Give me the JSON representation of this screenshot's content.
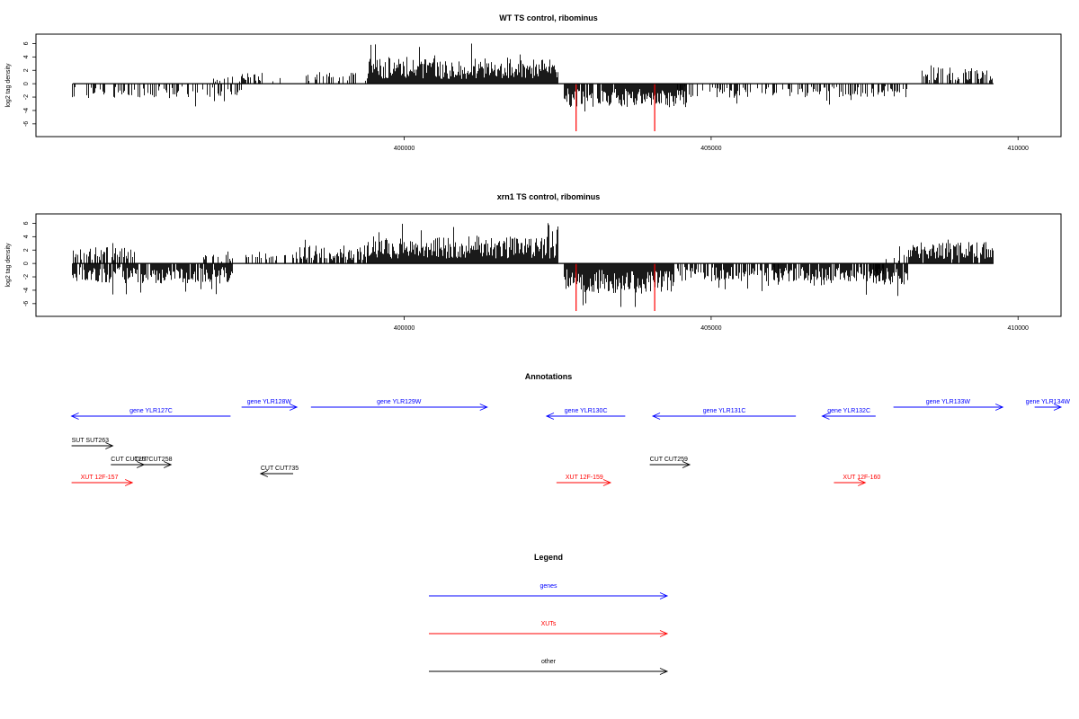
{
  "chart_data": [
    {
      "type": "bar",
      "title": "WT TS control, ribominus",
      "ylabel": "log2 tag density",
      "xlabel": "",
      "ylim": [
        -7.5,
        7
      ],
      "xlim": [
        394000,
        410700
      ],
      "xticks": [
        400000,
        405000,
        410000
      ],
      "yticks": [
        -6,
        -4,
        -2,
        0,
        2,
        4,
        6
      ],
      "x_extent": [
        394600,
        409600
      ],
      "series": [
        {
          "color": "#000000",
          "segments": [
            {
              "from": 394600,
              "to": 397400,
              "strand": "minus",
              "level": 1.6,
              "density": 0.35
            },
            {
              "from": 396900,
              "to": 397400,
              "strand": "plus",
              "level": 0.8,
              "density": 0.2
            },
            {
              "from": 397300,
              "to": 398000,
              "strand": "plus",
              "level": 1.2,
              "density": 0.3
            },
            {
              "from": 398300,
              "to": 399400,
              "strand": "plus",
              "level": 1.3,
              "density": 0.35
            },
            {
              "from": 399400,
              "to": 402500,
              "strand": "plus",
              "level": 2.8,
              "density": 1.0
            },
            {
              "from": 402600,
              "to": 404600,
              "strand": "minus",
              "level": 2.6,
              "density": 0.9
            },
            {
              "from": 404400,
              "to": 406100,
              "strand": "minus",
              "level": 1.6,
              "density": 0.35
            },
            {
              "from": 405300,
              "to": 405400,
              "strand": "plus",
              "level": 0.8,
              "density": 0.1
            },
            {
              "from": 406000,
              "to": 408200,
              "strand": "minus",
              "level": 1.5,
              "density": 0.45
            },
            {
              "from": 408400,
              "to": 409600,
              "strand": "plus",
              "level": 1.8,
              "density": 0.5
            }
          ]
        },
        {
          "color": "#ff0000",
          "values": [
            {
              "x": 402800,
              "y": -7.1
            },
            {
              "x": 404080,
              "y": -7.1
            }
          ]
        }
      ]
    },
    {
      "type": "bar",
      "title": "xrn1 TS control, ribominus",
      "ylabel": "log2 tag density",
      "xlabel": "",
      "ylim": [
        -7.5,
        7
      ],
      "xlim": [
        394000,
        410700
      ],
      "xticks": [
        400000,
        405000,
        410000
      ],
      "yticks": [
        -6,
        -4,
        -2,
        0,
        2,
        4,
        6
      ],
      "x_extent": [
        394600,
        409600
      ],
      "series": [
        {
          "color": "#000000",
          "segments": [
            {
              "from": 394600,
              "to": 395600,
              "strand": "plus",
              "level": 1.8,
              "density": 0.6
            },
            {
              "from": 394600,
              "to": 397200,
              "strand": "minus",
              "level": 2.2,
              "density": 0.9
            },
            {
              "from": 396700,
              "to": 397200,
              "strand": "plus",
              "level": 1.0,
              "density": 0.3
            },
            {
              "from": 397400,
              "to": 398300,
              "strand": "plus",
              "level": 1.3,
              "density": 0.4
            },
            {
              "from": 398300,
              "to": 399400,
              "strand": "plus",
              "level": 2.0,
              "density": 0.7
            },
            {
              "from": 399400,
              "to": 402500,
              "strand": "plus",
              "level": 3.0,
              "density": 1.0
            },
            {
              "from": 402600,
              "to": 404400,
              "strand": "minus",
              "level": 3.4,
              "density": 1.0
            },
            {
              "from": 404400,
              "to": 406100,
              "strand": "minus",
              "level": 2.0,
              "density": 0.6
            },
            {
              "from": 406000,
              "to": 407800,
              "strand": "minus",
              "level": 2.2,
              "density": 0.8
            },
            {
              "from": 407600,
              "to": 408200,
              "strand": "minus",
              "level": 2.4,
              "density": 0.9
            },
            {
              "from": 407800,
              "to": 408200,
              "strand": "plus",
              "level": 1.2,
              "density": 0.3
            },
            {
              "from": 408200,
              "to": 409600,
              "strand": "plus",
              "level": 2.4,
              "density": 0.9
            }
          ]
        },
        {
          "color": "#ff0000",
          "values": [
            {
              "x": 402800,
              "y": -7.1
            },
            {
              "x": 404080,
              "y": -7.1
            }
          ]
        }
      ]
    }
  ],
  "annotations": {
    "title": "Annotations",
    "colors": {
      "genes": "#0000ff",
      "xuts": "#ff0000",
      "other": "#000000"
    },
    "items": [
      {
        "label": "gene YLR127C",
        "kind": "genes",
        "row": 1,
        "dir": "left",
        "from": 394580,
        "to": 397170
      },
      {
        "label": "gene YLR128W",
        "kind": "genes",
        "row": 0,
        "dir": "right",
        "from": 397350,
        "to": 398250
      },
      {
        "label": "gene YLR129W",
        "kind": "genes",
        "row": 0,
        "dir": "right",
        "from": 398480,
        "to": 401350
      },
      {
        "label": "gene YLR130C",
        "kind": "genes",
        "row": 1,
        "dir": "left",
        "from": 402320,
        "to": 403600
      },
      {
        "label": "gene YLR131C",
        "kind": "genes",
        "row": 1,
        "dir": "left",
        "from": 404050,
        "to": 406380
      },
      {
        "label": "gene YLR132C",
        "kind": "genes",
        "row": 1,
        "dir": "left",
        "from": 406810,
        "to": 407680
      },
      {
        "label": "gene YLR133W",
        "kind": "genes",
        "row": 0,
        "dir": "right",
        "from": 407970,
        "to": 409750
      },
      {
        "label": "gene YLR134W",
        "kind": "genes",
        "row": 0,
        "dir": "right",
        "from": 410270,
        "to": 410700
      },
      {
        "label": "SUT SUT263",
        "kind": "other",
        "row": 2,
        "dir": "right",
        "from": 394580,
        "to": 395250
      },
      {
        "label": "CUT CUT257",
        "kind": "other",
        "row": 3,
        "dir": "right",
        "from": 395220,
        "to": 395760
      },
      {
        "label": "CUT CUT258",
        "kind": "other",
        "row": 3,
        "dir": "right",
        "from": 395600,
        "to": 396200
      },
      {
        "label": "CUT CUT735",
        "kind": "other",
        "row": 4,
        "dir": "left",
        "from": 397660,
        "to": 398190
      },
      {
        "label": "CUT CUT259",
        "kind": "other",
        "row": 3,
        "dir": "right",
        "from": 404000,
        "to": 404650
      },
      {
        "label": "XUT 12F-157",
        "kind": "xuts",
        "row": 5,
        "dir": "right",
        "from": 394580,
        "to": 395570
      },
      {
        "label": "XUT 12F-159",
        "kind": "xuts",
        "row": 5,
        "dir": "right",
        "from": 402480,
        "to": 403360
      },
      {
        "label": "XUT 12F-160",
        "kind": "xuts",
        "row": 5,
        "dir": "right",
        "from": 407000,
        "to": 407510
      }
    ]
  },
  "legend": {
    "title": "Legend",
    "entries": [
      {
        "label": "genes",
        "color": "#0000ff"
      },
      {
        "label": "XUTs",
        "color": "#ff0000"
      },
      {
        "label": "other",
        "color": "#000000"
      }
    ]
  }
}
